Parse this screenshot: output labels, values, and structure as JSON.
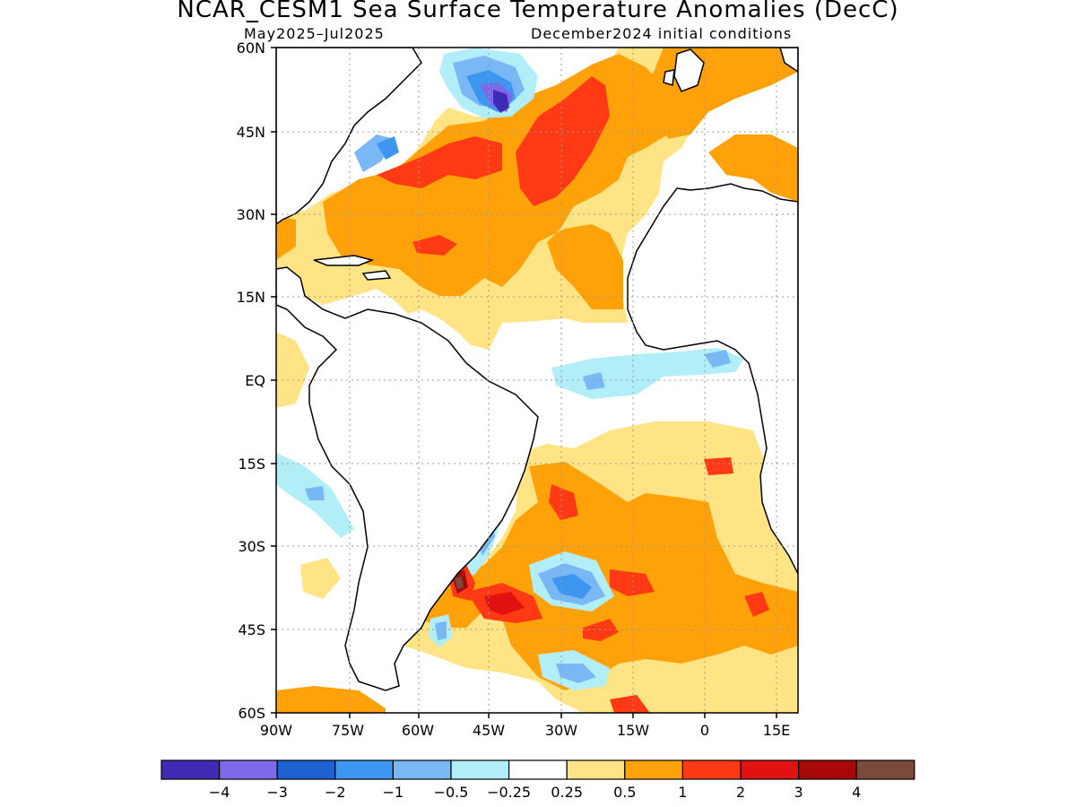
{
  "title": "NCAR_CESM1 Sea Surface Temperature Anomalies (DecC)",
  "period": "May2025–Jul2025",
  "initial_conditions": "December2024 initial conditions",
  "latitude_labels": [
    "60N",
    "45N",
    "30N",
    "15N",
    "EQ",
    "15S",
    "30S",
    "45S",
    "60S"
  ],
  "longitude_labels": [
    "90W",
    "75W",
    "60W",
    "45W",
    "30W",
    "15W",
    "0",
    "15E"
  ],
  "colorbar": {
    "colors": [
      "#3f2bb5",
      "#7d68e8",
      "#1d62d0",
      "#3d96f0",
      "#7ab8f5",
      "#b2eef8",
      "#ffffff",
      "#ffe486",
      "#ffa20a",
      "#ff3a14",
      "#e01212",
      "#a80808",
      "#7a4a3a"
    ],
    "tick_labels": [
      "−4",
      "−3",
      "−2",
      "−1",
      "−0.5",
      "−0.25",
      "0.25",
      "0.5",
      "1",
      "2",
      "3",
      "4"
    ]
  }
}
